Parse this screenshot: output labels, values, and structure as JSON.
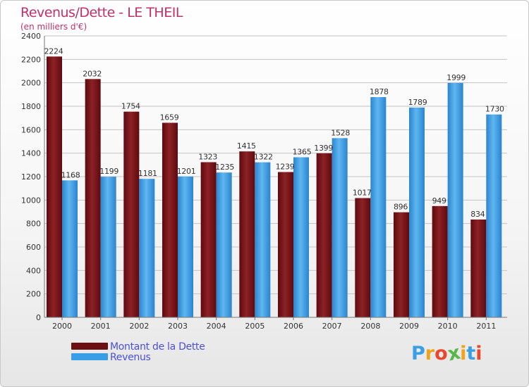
{
  "chart_data": {
    "type": "bar",
    "title": "Revenus/Dette - LE THEIL",
    "subtitle": "(en milliers d'€)",
    "categories": [
      "2000",
      "2001",
      "2002",
      "2003",
      "2004",
      "2005",
      "2006",
      "2007",
      "2008",
      "2009",
      "2010",
      "2011"
    ],
    "series": [
      {
        "name": "Montant de la Dette",
        "color": "#7a1216",
        "values": [
          2224,
          2032,
          1754,
          1659,
          1323,
          1415,
          1239,
          1399,
          1017,
          896,
          949,
          834
        ]
      },
      {
        "name": "Revenus",
        "color": "#3a9ee6",
        "values": [
          1168,
          1199,
          1181,
          1201,
          1235,
          1322,
          1365,
          1528,
          1878,
          1789,
          1999,
          1730
        ]
      }
    ],
    "ylim": [
      0,
      2400
    ],
    "yticks": [
      0,
      200,
      400,
      600,
      800,
      1000,
      1200,
      1400,
      1600,
      1800,
      2000,
      2200,
      2400
    ],
    "grid": true,
    "legend_position": "bottom-left"
  },
  "brand": {
    "logo_text": "Proxiti",
    "logo_colors": [
      "#3a9ee6",
      "#f0a21c",
      "#e8492c",
      "#56b848",
      "#f0a21c",
      "#3a9ee6",
      "#e8492c"
    ]
  }
}
